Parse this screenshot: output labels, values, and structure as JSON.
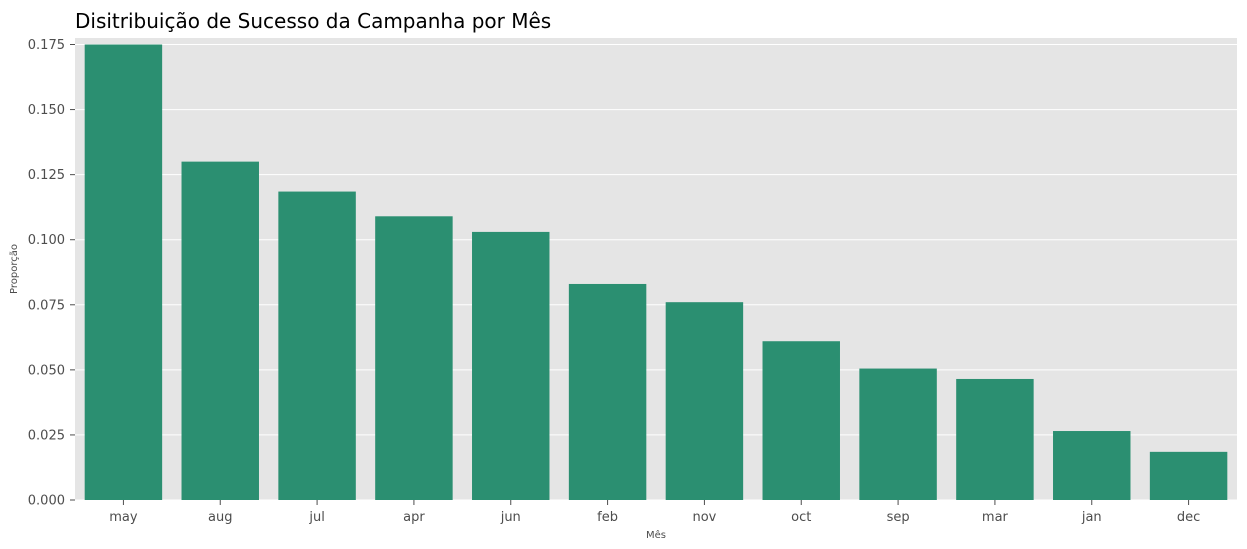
{
  "chart_data": {
    "type": "bar",
    "title": "Disitribuição de Sucesso da Campanha por Mês",
    "xlabel": "Mês",
    "ylabel": "Proporção",
    "categories": [
      "may",
      "aug",
      "jul",
      "apr",
      "jun",
      "feb",
      "nov",
      "oct",
      "sep",
      "mar",
      "jan",
      "dec"
    ],
    "values": [
      0.175,
      0.13,
      0.1185,
      0.109,
      0.103,
      0.083,
      0.076,
      0.061,
      0.0505,
      0.0465,
      0.0265,
      0.0185
    ],
    "ylim": [
      0,
      0.1775
    ],
    "yticks": [
      "0.000",
      "0.025",
      "0.050",
      "0.075",
      "0.100",
      "0.125",
      "0.150",
      "0.175"
    ],
    "ytick_values": [
      0,
      0.025,
      0.05,
      0.075,
      0.1,
      0.125,
      0.15,
      0.175
    ],
    "grid": true,
    "colors": {
      "bar": "#2b8f71",
      "plot_background": "#e5e5e5",
      "grid": "#ffffff"
    }
  }
}
